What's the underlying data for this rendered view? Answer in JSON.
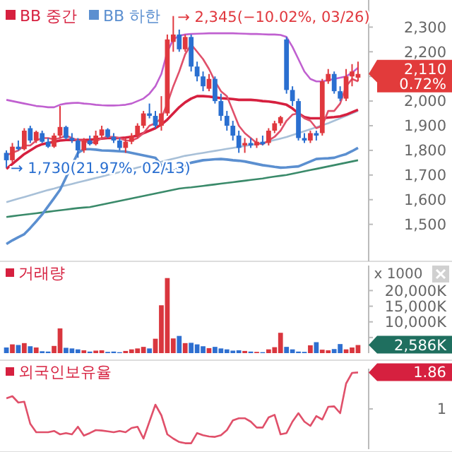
{
  "chart_data": [
    {
      "type": "candlestick",
      "categories": [
        null,
        null,
        null,
        null,
        null,
        null,
        null,
        null,
        null,
        null,
        null,
        null,
        null,
        null,
        null,
        null,
        null,
        null,
        null,
        null,
        null,
        null,
        null,
        null,
        null,
        null,
        null,
        null,
        null,
        null,
        null,
        null,
        null,
        null,
        null,
        null,
        null,
        null,
        null,
        null,
        null,
        null,
        null,
        null,
        null,
        null,
        null,
        null,
        null,
        null,
        null,
        null,
        null,
        null,
        null,
        null,
        null,
        null,
        null,
        null
      ],
      "ohlc": [
        [
          1790,
          1800,
          1730,
          1760
        ],
        [
          1760,
          1830,
          1750,
          1815
        ],
        [
          1815,
          1840,
          1800,
          1805
        ],
        [
          1805,
          1890,
          1800,
          1880
        ],
        [
          1890,
          1900,
          1830,
          1840
        ],
        [
          1840,
          1880,
          1830,
          1875
        ],
        [
          1870,
          1880,
          1830,
          1835
        ],
        [
          1835,
          1850,
          1810,
          1815
        ],
        [
          1815,
          1870,
          1810,
          1860
        ],
        [
          1860,
          1980,
          1850,
          1895
        ],
        [
          1895,
          1900,
          1845,
          1850
        ],
        [
          1850,
          1870,
          1830,
          1840
        ],
        [
          1840,
          1850,
          1770,
          1800
        ],
        [
          1800,
          1850,
          1790,
          1840
        ],
        [
          1840,
          1860,
          1820,
          1825
        ],
        [
          1825,
          1880,
          1820,
          1860
        ],
        [
          1860,
          1900,
          1850,
          1885
        ],
        [
          1885,
          1890,
          1850,
          1855
        ],
        [
          1855,
          1870,
          1830,
          1840
        ],
        [
          1840,
          1850,
          1800,
          1810
        ],
        [
          1810,
          1850,
          1790,
          1835
        ],
        [
          1835,
          1870,
          1825,
          1860
        ],
        [
          1860,
          1910,
          1850,
          1900
        ],
        [
          1900,
          1960,
          1890,
          1950
        ],
        [
          1950,
          1990,
          1930,
          1940
        ],
        [
          1940,
          1960,
          1890,
          1900
        ],
        [
          1900,
          2020,
          1880,
          1950
        ],
        [
          1950,
          2270,
          1940,
          2250
        ],
        [
          2240,
          2345,
          2200,
          2270
        ],
        [
          2270,
          2290,
          2200,
          2210
        ],
        [
          2210,
          2270,
          2200,
          2260
        ],
        [
          2260,
          2270,
          2120,
          2140
        ],
        [
          2140,
          2160,
          2080,
          2100
        ],
        [
          2100,
          2120,
          2040,
          2060
        ],
        [
          2050,
          2110,
          2040,
          2090
        ],
        [
          2090,
          2100,
          1990,
          2000
        ],
        [
          2000,
          2030,
          1920,
          1940
        ],
        [
          1940,
          1960,
          1880,
          1900
        ],
        [
          1900,
          1920,
          1840,
          1860
        ],
        [
          1860,
          1880,
          1790,
          1810
        ],
        [
          1820,
          1850,
          1790,
          1830
        ],
        [
          1830,
          1850,
          1810,
          1820
        ],
        [
          1820,
          1850,
          1810,
          1835
        ],
        [
          1835,
          1860,
          1820,
          1825
        ],
        [
          1830,
          1890,
          1820,
          1880
        ],
        [
          1880,
          1920,
          1870,
          1910
        ],
        [
          1910,
          1940,
          1900,
          1935
        ],
        [
          2250,
          2260,
          2030,
          2045
        ],
        [
          2045,
          2060,
          1980,
          2000
        ],
        [
          2000,
          2010,
          1840,
          1850
        ],
        [
          1850,
          1870,
          1830,
          1840
        ],
        [
          1840,
          1880,
          1830,
          1870
        ],
        [
          1870,
          1880,
          1840,
          1860
        ],
        [
          1870,
          2090,
          1860,
          2080
        ],
        [
          2080,
          2130,
          2070,
          2110
        ],
        [
          2110,
          2120,
          2030,
          2040
        ],
        [
          2040,
          2060,
          2000,
          2010
        ],
        [
          2010,
          2130,
          2000,
          2100
        ],
        [
          2100,
          2150,
          2060,
          2120
        ],
        [
          2095,
          2160,
          2080,
          2110
        ]
      ],
      "series": [
        {
          "type": "line",
          "color": "#a8c0d8",
          "values": [
            1590,
            1597,
            1604,
            1611,
            1618,
            1625,
            1632,
            1639,
            1645,
            1652,
            1658,
            1664,
            1670,
            1676,
            1682,
            1688,
            1694,
            1700,
            1706,
            1712,
            1718,
            1724,
            1730,
            1736,
            1742,
            1748,
            1754,
            1760,
            1766,
            1772,
            1778,
            1782,
            1786,
            1790,
            1794,
            1798,
            1802,
            1806,
            1810,
            1814,
            1818,
            1822,
            1826,
            1830,
            1836,
            1842,
            1848,
            1854,
            1862,
            1870,
            1878,
            1886,
            1894,
            1902,
            1910,
            1920,
            1930,
            1940,
            1950,
            1960
          ]
        },
        {
          "type": "line",
          "color": "#3a8a6a",
          "values": [
            1530,
            1533,
            1536,
            1539,
            1542,
            1545,
            1548,
            1551,
            1554,
            1557,
            1560,
            1563,
            1566,
            1568,
            1570,
            1575,
            1580,
            1585,
            1590,
            1595,
            1600,
            1605,
            1610,
            1615,
            1620,
            1625,
            1630,
            1635,
            1640,
            1645,
            1648,
            1650,
            1653,
            1656,
            1659,
            1662,
            1665,
            1668,
            1671,
            1674,
            1677,
            1680,
            1683,
            1686,
            1690,
            1694,
            1697,
            1700,
            1705,
            1710,
            1715,
            1720,
            1725,
            1730,
            1735,
            1740,
            1745,
            1750,
            1755,
            1760
          ]
        },
        {
          "type": "line",
          "color": "#c060d0",
          "values": [
            2005,
            2000,
            1995,
            1990,
            1985,
            1980,
            1978,
            1975,
            1975,
            1985,
            1990,
            1992,
            1993,
            1990,
            1988,
            1985,
            1983,
            1982,
            1982,
            1983,
            1985,
            1990,
            2000,
            2010,
            2030,
            2060,
            2110,
            2200,
            2250,
            2265,
            2270,
            2272,
            2273,
            2274,
            2275,
            2275,
            2275,
            2275,
            2275,
            2274,
            2273,
            2272,
            2272,
            2271,
            2270,
            2270,
            2268,
            2260,
            2220,
            2170,
            2120,
            2090,
            2080,
            2080,
            2085,
            2090,
            2095,
            2100,
            2115,
            2135
          ]
        },
        {
          "type": "line",
          "name": "BB 중간",
          "color": "#d6203f",
          "values": [
            1725,
            1745,
            1765,
            1785,
            1800,
            1815,
            1825,
            1830,
            1835,
            1840,
            1842,
            1843,
            1842,
            1842,
            1843,
            1845,
            1848,
            1850,
            1850,
            1850,
            1852,
            1855,
            1860,
            1870,
            1880,
            1890,
            1905,
            1925,
            1950,
            1975,
            1995,
            2010,
            2020,
            2020,
            2018,
            2015,
            2012,
            2010,
            2008,
            2005,
            2005,
            2005,
            2003,
            2000,
            1998,
            1995,
            1990,
            1985,
            1970,
            1950,
            1935,
            1930,
            1930,
            1930,
            1933,
            1935,
            1938,
            1945,
            1955,
            1965
          ]
        },
        {
          "type": "line",
          "name": "BB 하한",
          "color": "#5b8fd0",
          "values": [
            1420,
            1435,
            1448,
            1460,
            1485,
            1512,
            1540,
            1573,
            1606,
            1640,
            1690,
            1740,
            1790,
            1805,
            1805,
            1803,
            1800,
            1799,
            1798,
            1796,
            1795,
            1790,
            1785,
            1780,
            1775,
            1770,
            1740,
            1720,
            1715,
            1730,
            1740,
            1750,
            1755,
            1760,
            1762,
            1764,
            1765,
            1763,
            1760,
            1758,
            1755,
            1750,
            1745,
            1740,
            1737,
            1733,
            1730,
            1731,
            1733,
            1735,
            1745,
            1755,
            1765,
            1767,
            1768,
            1770,
            1778,
            1785,
            1797,
            1810
          ]
        },
        {
          "type": "line",
          "color": "#e0506a",
          "values": [
            1780,
            1790,
            1800,
            1820,
            1820,
            1840,
            1850,
            1850,
            1845,
            1850,
            1860,
            1850,
            1840,
            1840,
            1830,
            1835,
            1850,
            1855,
            1855,
            1850,
            1840,
            1840,
            1850,
            1870,
            1900,
            1910,
            1930,
            1990,
            2060,
            2120,
            2190,
            2230,
            2200,
            2170,
            2130,
            2080,
            2040,
            2020,
            1960,
            1900,
            1870,
            1850,
            1830,
            1825,
            1840,
            1855,
            1880,
            1920,
            1945,
            1950,
            1930,
            1920,
            1890,
            1900,
            1960,
            1960,
            1990,
            2060,
            2090,
            2080
          ]
        }
      ],
      "ylim": [
        1350,
        2410
      ],
      "yticks": [
        {
          "value": 2300,
          "label": "2,300"
        },
        {
          "value": 2200,
          "label": "2,200"
        },
        {
          "value": 2100,
          "label": null
        },
        {
          "value": 2000,
          "label": "2,000"
        },
        {
          "value": 1900,
          "label": "1,900"
        },
        {
          "value": 1800,
          "label": "1,800"
        },
        {
          "value": 1700,
          "label": "1,700"
        },
        {
          "value": 1600,
          "label": "1,600"
        },
        {
          "value": 1500,
          "label": "1,500"
        }
      ],
      "legend": "top left",
      "annotations": [
        "→ 2,345(−10.02%, 03/26)",
        "→ 1,730(21.97%, 02/13)",
        "2,110 0.72%"
      ]
    },
    {
      "type": "bar",
      "title": "거래량",
      "ylabel": "x 1000",
      "categories": [
        null,
        null,
        null,
        null,
        null,
        null,
        null,
        null,
        null,
        null,
        null,
        null,
        null,
        null,
        null,
        null,
        null,
        null,
        null,
        null,
        null,
        null,
        null,
        null,
        null,
        null,
        null,
        null,
        null,
        null,
        null,
        null,
        null,
        null,
        null,
        null,
        null,
        null,
        null,
        null,
        null,
        null,
        null,
        null,
        null,
        null,
        null,
        null,
        null,
        null,
        null,
        null,
        null,
        null,
        null,
        null,
        null,
        null,
        null,
        null
      ],
      "values": [
        1800,
        2800,
        2600,
        3200,
        2200,
        1800,
        600,
        500,
        2300,
        7900,
        1700,
        1500,
        1200,
        900,
        500,
        800,
        900,
        400,
        500,
        300,
        700,
        1200,
        1500,
        2000,
        1500,
        4600,
        15300,
        24000,
        4700,
        5500,
        3200,
        3300,
        2800,
        2200,
        1600,
        2000,
        1500,
        1200,
        800,
        900,
        700,
        500,
        400,
        300,
        1200,
        1900,
        6500,
        2000,
        1200,
        500,
        400,
        2500,
        3500,
        1100,
        900,
        1300,
        2900,
        1200,
        1800,
        2586
      ],
      "colors": [
        "#2e6fd0",
        "#d9363e",
        "#2e6fd0",
        "#d9363e",
        "#2e6fd0",
        "#d9363e",
        "#2e6fd0",
        "#2e6fd0",
        "#d9363e",
        "#d9363e",
        "#2e6fd0",
        "#2e6fd0",
        "#2e6fd0",
        "#d9363e",
        "#2e6fd0",
        "#d9363e",
        "#d9363e",
        "#2e6fd0",
        "#2e6fd0",
        "#2e6fd0",
        "#d9363e",
        "#d9363e",
        "#d9363e",
        "#d9363e",
        "#2e6fd0",
        "#d9363e",
        "#d9363e",
        "#d9363e",
        "#d9363e",
        "#2e6fd0",
        "#d9363e",
        "#2e6fd0",
        "#2e6fd0",
        "#2e6fd0",
        "#d9363e",
        "#2e6fd0",
        "#2e6fd0",
        "#2e6fd0",
        "#2e6fd0",
        "#2e6fd0",
        "#d9363e",
        "#2e6fd0",
        "#d9363e",
        "#2e6fd0",
        "#d9363e",
        "#d9363e",
        "#d9363e",
        "#2e6fd0",
        "#2e6fd0",
        "#2e6fd0",
        "#2e6fd0",
        "#d9363e",
        "#2e6fd0",
        "#d9363e",
        "#d9363e",
        "#2e6fd0",
        "#2e6fd0",
        "#d9363e",
        "#d9363e",
        "#d9363e"
      ],
      "ylim": [
        0,
        28000
      ],
      "yticks": [
        {
          "value": 20000,
          "label": "20,000K"
        },
        {
          "value": 15000,
          "label": "15,000K"
        },
        {
          "value": 10000,
          "label": "10,000K"
        },
        {
          "value": 5000,
          "label": null
        }
      ],
      "annotations": [
        "2,586K"
      ]
    },
    {
      "type": "line",
      "title": "외국인보유율",
      "categories": [
        null,
        null,
        null,
        null,
        null,
        null,
        null,
        null,
        null,
        null,
        null,
        null,
        null,
        null,
        null,
        null,
        null,
        null,
        null,
        null,
        null,
        null,
        null,
        null,
        null,
        null,
        null,
        null,
        null,
        null,
        null,
        null,
        null,
        null,
        null,
        null,
        null,
        null,
        null,
        null,
        null,
        null,
        null,
        null,
        null,
        null,
        null,
        null,
        null,
        null,
        null,
        null,
        null,
        null,
        null,
        null,
        null,
        null,
        null,
        null
      ],
      "series": [
        {
          "color": "#e0506a",
          "values": [
            1.25,
            1.3,
            1.15,
            1.17,
            0.65,
            0.45,
            0.45,
            0.45,
            0.48,
            0.4,
            0.43,
            0.4,
            0.58,
            0.37,
            0.43,
            0.5,
            0.49,
            0.47,
            0.45,
            0.48,
            0.45,
            0.55,
            0.58,
            0.3,
            0.7,
            1.1,
            0.85,
            0.4,
            0.3,
            0.22,
            0.19,
            0.19,
            0.43,
            0.38,
            0.35,
            0.34,
            0.38,
            0.5,
            0.73,
            0.78,
            0.78,
            0.7,
            0.56,
            0.56,
            0.8,
            0.86,
            0.4,
            0.43,
            0.7,
            0.9,
            0.7,
            0.6,
            0.83,
            0.75,
            1.05,
            1.06,
            0.9,
            1.6,
            1.85,
            1.86
          ]
        }
      ],
      "ylim": [
        0.05,
        1.95
      ],
      "yticks": [
        1,
        1.86
      ]
    }
  ]
}
